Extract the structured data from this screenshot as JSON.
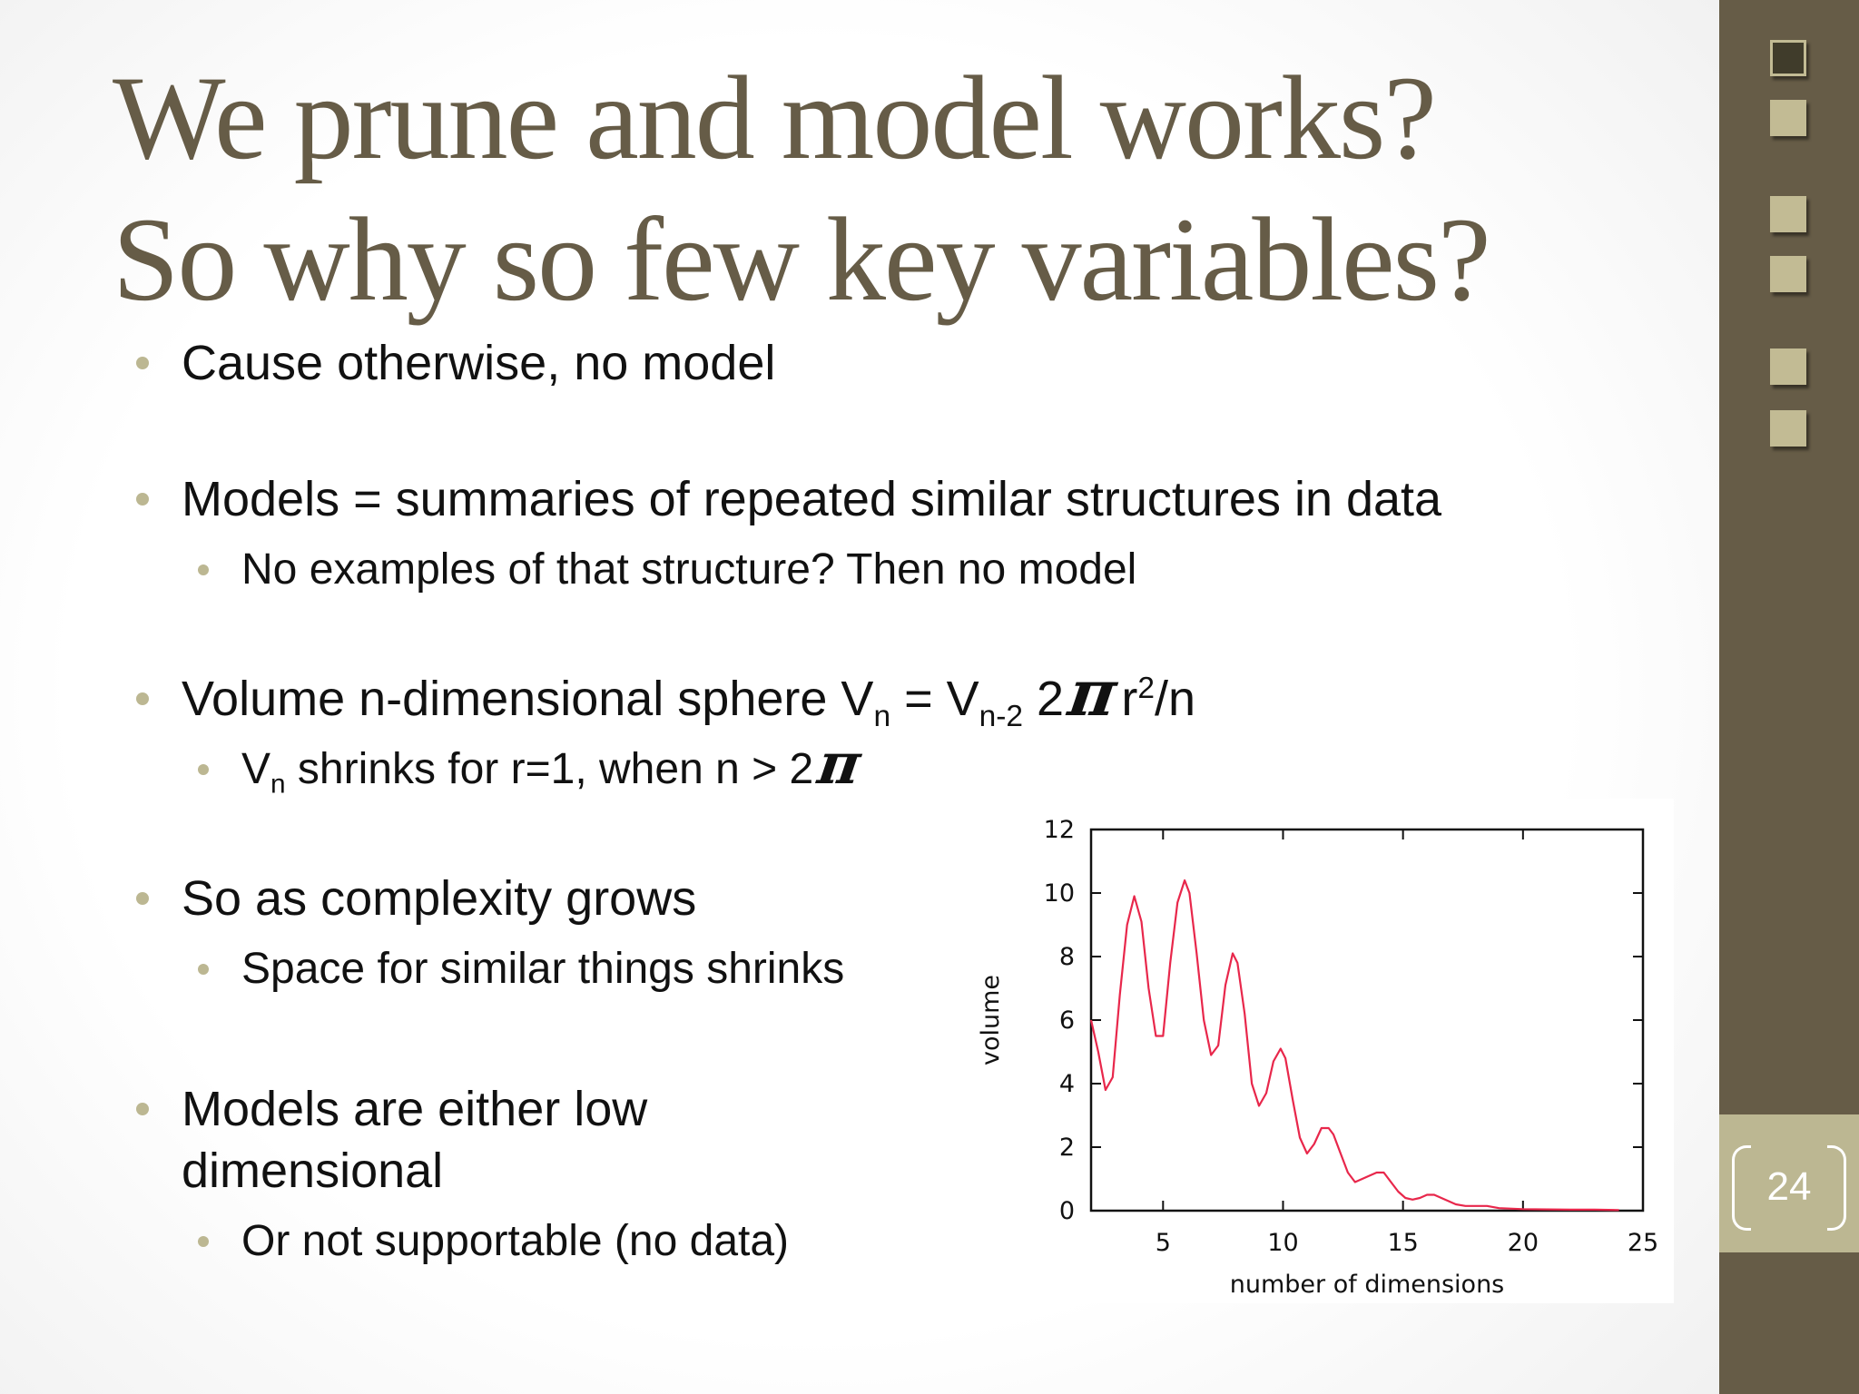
{
  "slide": {
    "title_lines": [
      "We prune and model works?",
      "So why so few key variables?"
    ],
    "page_number": "24"
  },
  "bullets": {
    "b1": "Cause otherwise, no model",
    "b2": "Models  = summaries of repeated similar structures in data",
    "b2_sub1": "No examples of that structure? Then no model",
    "b3": {
      "prefix": "Volume n-dimensional sphere V",
      "sub_n": "n",
      "eq": " = V",
      "sub_n2": "n-2",
      "two": " 2",
      "pi": "π",
      "r": "r",
      "sup2": "2",
      "suffix": "/n"
    },
    "b3_sub1": {
      "v": "V",
      "sub_n": "n",
      "text": " shrinks for r=1, when  n > 2",
      "pi": "π"
    },
    "b4": "So as complexity grows",
    "b4_sub1": "Space for similar things shrinks",
    "b5": "Models are either low dimensional",
    "b5_sub1": "Or not supportable (no data)"
  },
  "chart_data": {
    "type": "line",
    "xlabel": "number of dimensions",
    "ylabel": "volume",
    "xlim": [
      2,
      25
    ],
    "ylim": [
      0,
      12
    ],
    "x_ticks": [
      5,
      10,
      15,
      20,
      25
    ],
    "y_ticks": [
      0,
      2,
      4,
      6,
      8,
      10,
      12
    ],
    "line_color": "#e8274b",
    "series": [
      {
        "x": [
          2,
          2.3,
          2.6,
          2.9,
          3.2,
          3.5,
          3.8,
          4.1,
          4.4,
          4.7,
          5.0,
          5.3,
          5.6,
          5.9,
          6.1,
          6.4,
          6.7,
          7.0,
          7.3,
          7.6,
          7.9,
          8.1,
          8.4,
          8.7,
          9.0,
          9.3,
          9.6,
          9.9,
          10.1,
          10.4,
          10.7,
          11.0,
          11.3,
          11.6,
          11.9,
          12.1,
          12.4,
          12.7,
          13.0,
          13.3,
          13.6,
          13.9,
          14.2,
          14.5,
          14.8,
          15.1,
          15.4,
          15.7,
          16.0,
          16.3,
          16.6,
          16.9,
          17.2,
          17.6,
          18.0,
          18.5,
          19.0,
          20.0,
          21.0,
          22.0,
          23.0,
          24.0
        ],
        "y": [
          6.0,
          5.0,
          3.8,
          4.2,
          6.8,
          9.0,
          9.9,
          9.1,
          7.0,
          5.5,
          5.5,
          7.8,
          9.7,
          10.4,
          10.0,
          8.1,
          6.0,
          4.9,
          5.2,
          7.1,
          8.1,
          7.8,
          6.2,
          4.0,
          3.3,
          3.7,
          4.7,
          5.1,
          4.8,
          3.5,
          2.3,
          1.8,
          2.1,
          2.6,
          2.6,
          2.4,
          1.8,
          1.2,
          0.9,
          1.0,
          1.1,
          1.2,
          1.2,
          0.9,
          0.6,
          0.4,
          0.35,
          0.4,
          0.5,
          0.5,
          0.4,
          0.3,
          0.2,
          0.15,
          0.15,
          0.15,
          0.08,
          0.05,
          0.04,
          0.03,
          0.03,
          0.02
        ]
      }
    ]
  }
}
